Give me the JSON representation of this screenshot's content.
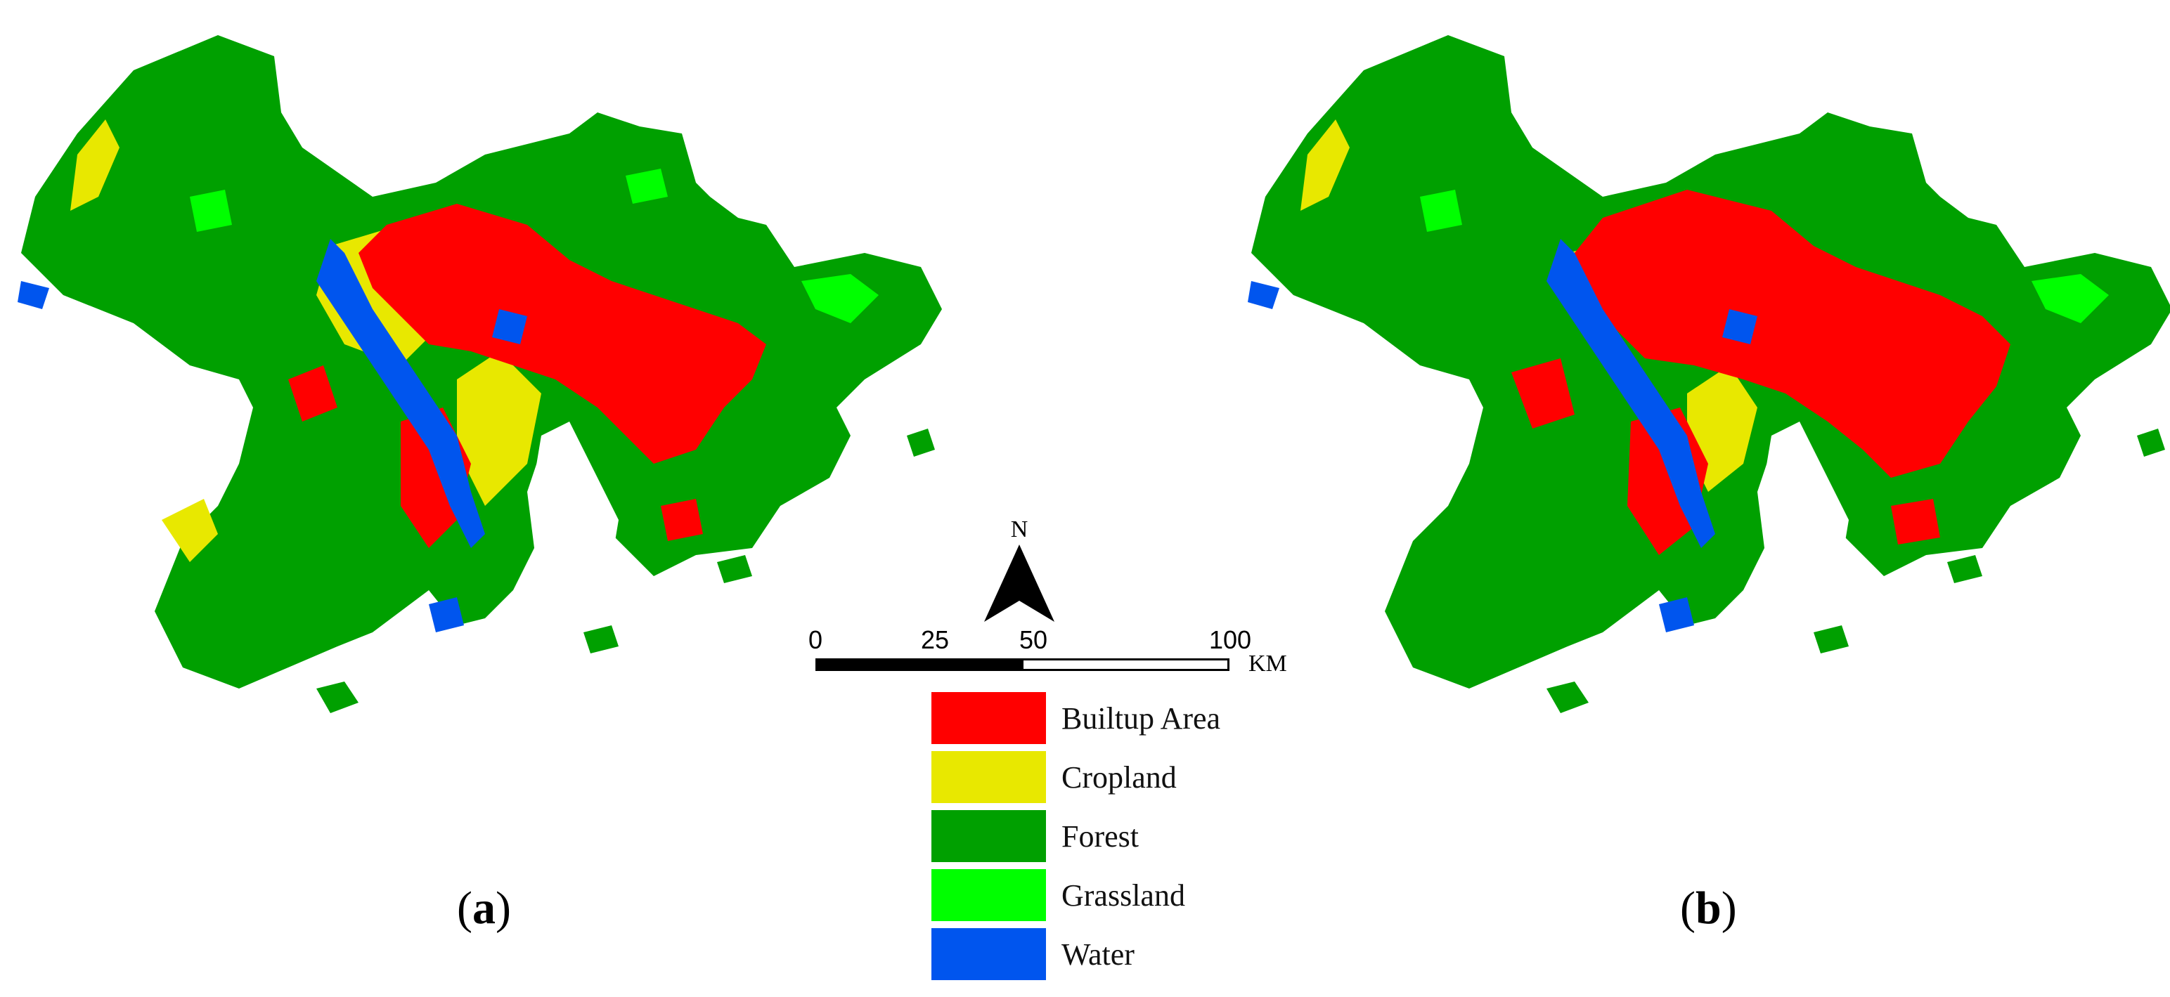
{
  "panels": [
    {
      "label_open": "(",
      "label_letter": "a",
      "label_close": ")"
    },
    {
      "label_open": "(",
      "label_letter": "b",
      "label_close": ")"
    }
  ],
  "north_arrow": {
    "letter": "N"
  },
  "scale_bar": {
    "ticks": [
      "0",
      "25",
      "50",
      "100"
    ],
    "unit": "KM"
  },
  "legend": {
    "items": [
      {
        "label": "Builtup Area",
        "color": "#ff0000"
      },
      {
        "label": "Cropland",
        "color": "#e8e800"
      },
      {
        "label": "Forest",
        "color": "#00a000"
      },
      {
        "label": "Grassland",
        "color": "#00ff00"
      },
      {
        "label": "Water",
        "color": "#0055ee"
      }
    ]
  }
}
